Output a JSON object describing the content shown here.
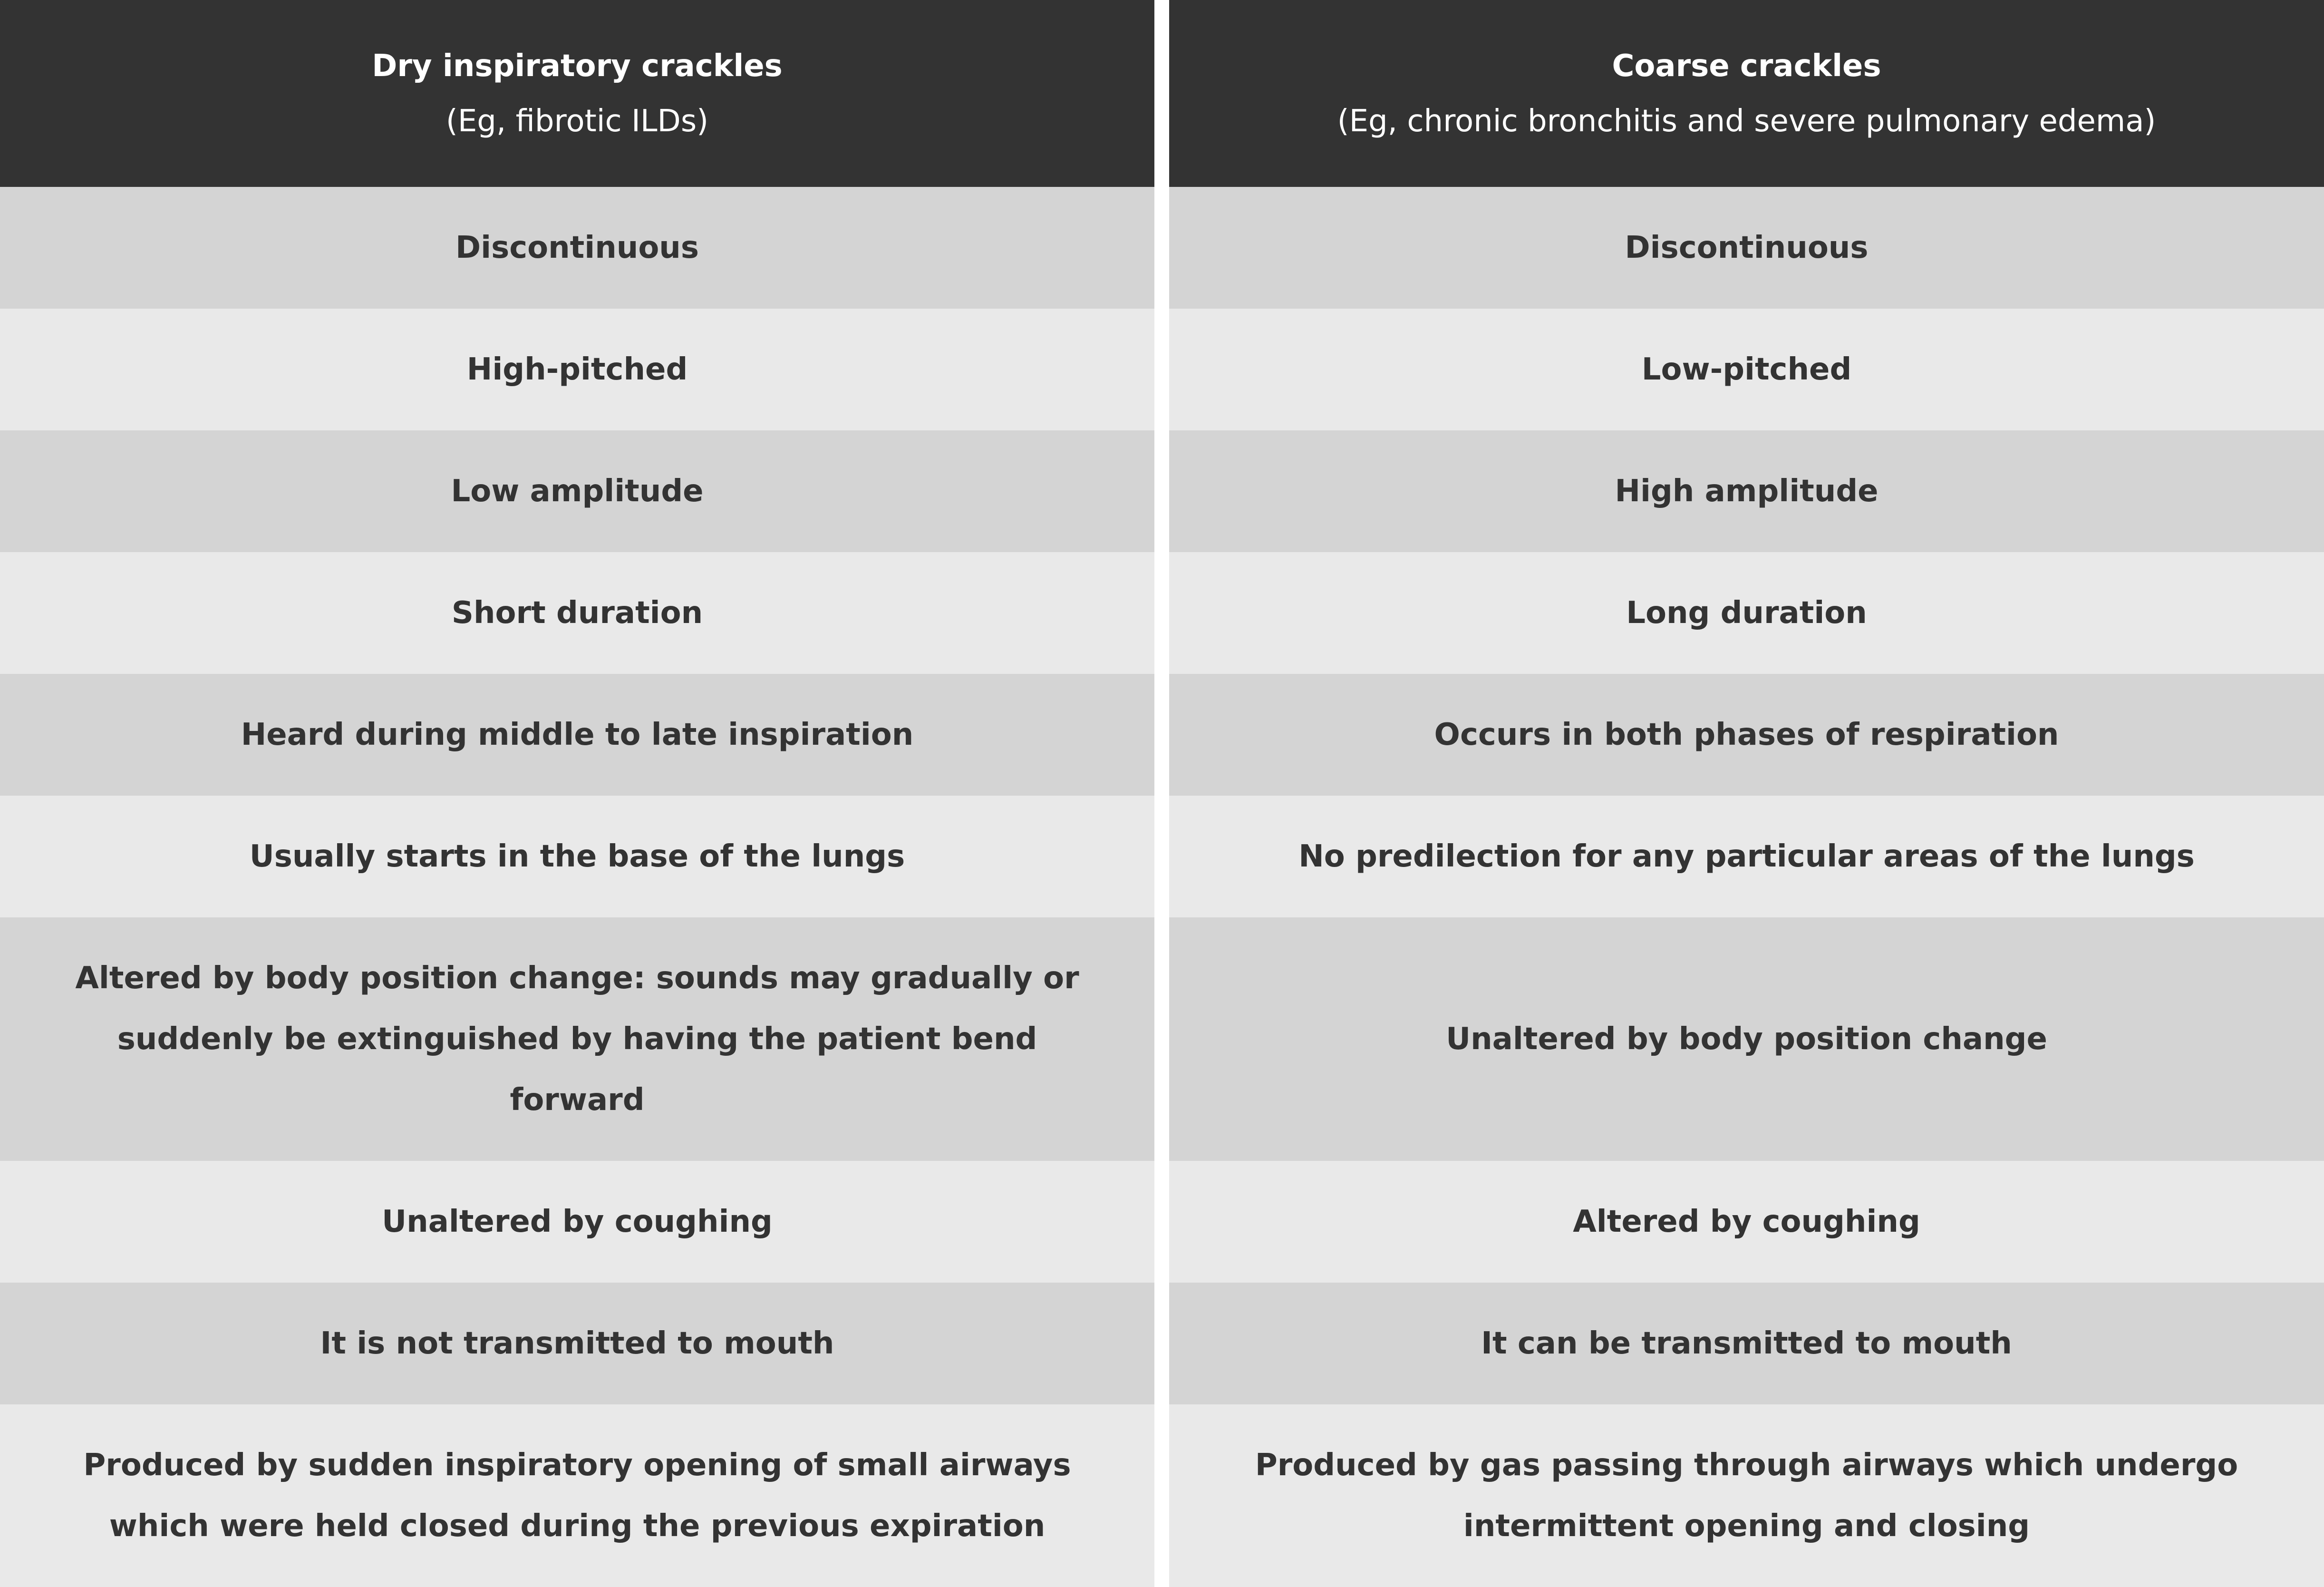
{
  "table": {
    "header": [
      {
        "title": "Dry inspiratory crackles",
        "subtitle": "(Eg, fibrotic ILDs)"
      },
      {
        "title": "Coarse crackles",
        "subtitle": "(Eg, chronic bronchitis and severe pulmonary edema)"
      }
    ],
    "rows": [
      [
        "Discontinuous",
        "Discontinuous"
      ],
      [
        "High-pitched",
        "Low-pitched"
      ],
      [
        "Low amplitude",
        "High amplitude"
      ],
      [
        "Short duration",
        "Long duration"
      ],
      [
        "Heard during middle to late inspiration",
        "Occurs in both phases of respiration"
      ],
      [
        "Usually starts in the base of the lungs",
        "No predilection for any particular areas of the lungs"
      ],
      [
        "Altered by body position change: sounds may gradually or suddenly be extinguished by having the patient bend forward",
        "Unaltered by body position change"
      ],
      [
        "Unaltered by coughing",
        "Altered by coughing"
      ],
      [
        "It is not transmitted to mouth",
        "It can be transmitted to mouth"
      ],
      [
        "Produced by sudden inspiratory opening of small airways which were held closed during the previous expiration",
        "Produced by gas passing through airways which undergo intermittent opening and closing"
      ]
    ]
  }
}
